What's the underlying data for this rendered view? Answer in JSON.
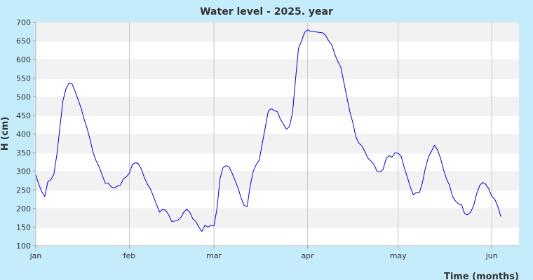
{
  "chart_data": {
    "type": "line",
    "title": "Water level - 2025. year",
    "xlabel": "Time (months)",
    "ylabel": "H (cm)",
    "ylim": [
      100,
      700
    ],
    "yticks": [
      "100",
      "150",
      "200",
      "250",
      "300",
      "350",
      "400",
      "450",
      "500",
      "550",
      "600",
      "650",
      "700"
    ],
    "xticks": [
      {
        "label": "jan",
        "day": 0
      },
      {
        "label": "feb",
        "day": 31
      },
      {
        "label": "mar",
        "day": 59
      },
      {
        "label": "apr",
        "day": 90
      },
      {
        "label": "may",
        "day": 120
      },
      {
        "label": "jun",
        "day": 151
      }
    ],
    "x_range_days": [
      0,
      160
    ],
    "grid": true,
    "line_color": "#0000cc",
    "series": [
      {
        "name": "",
        "points": [
          [
            0,
            290
          ],
          [
            1,
            265
          ],
          [
            2,
            245
          ],
          [
            3,
            232
          ],
          [
            4,
            272
          ],
          [
            5,
            277
          ],
          [
            6,
            292
          ],
          [
            7,
            345
          ],
          [
            8,
            420
          ],
          [
            9,
            490
          ],
          [
            10,
            522
          ],
          [
            11,
            537
          ],
          [
            12,
            535
          ],
          [
            13,
            515
          ],
          [
            14,
            493
          ],
          [
            15,
            470
          ],
          [
            16,
            440
          ],
          [
            17,
            415
          ],
          [
            18,
            385
          ],
          [
            19,
            350
          ],
          [
            20,
            328
          ],
          [
            21,
            312
          ],
          [
            22,
            290
          ],
          [
            23,
            268
          ],
          [
            24,
            268
          ],
          [
            25,
            258
          ],
          [
            26,
            255
          ],
          [
            27,
            260
          ],
          [
            28,
            262
          ],
          [
            29,
            280
          ],
          [
            30,
            285
          ],
          [
            31,
            295
          ],
          [
            32,
            318
          ],
          [
            33,
            323
          ],
          [
            34,
            320
          ],
          [
            35,
            305
          ],
          [
            36,
            282
          ],
          [
            37,
            265
          ],
          [
            38,
            252
          ],
          [
            39,
            232
          ],
          [
            40,
            210
          ],
          [
            41,
            190
          ],
          [
            42,
            198
          ],
          [
            43,
            195
          ],
          [
            44,
            183
          ],
          [
            45,
            165
          ],
          [
            46,
            166
          ],
          [
            47,
            168
          ],
          [
            48,
            175
          ],
          [
            49,
            190
          ],
          [
            50,
            198
          ],
          [
            51,
            190
          ],
          [
            52,
            172
          ],
          [
            53,
            165
          ],
          [
            54,
            150
          ],
          [
            55,
            138
          ],
          [
            56,
            155
          ],
          [
            57,
            150
          ],
          [
            58,
            155
          ],
          [
            59,
            153
          ],
          [
            60,
            200
          ],
          [
            61,
            280
          ],
          [
            62,
            310
          ],
          [
            63,
            315
          ],
          [
            64,
            312
          ],
          [
            65,
            295
          ],
          [
            66,
            275
          ],
          [
            67,
            255
          ],
          [
            68,
            228
          ],
          [
            69,
            208
          ],
          [
            70,
            205
          ],
          [
            71,
            260
          ],
          [
            72,
            300
          ],
          [
            73,
            318
          ],
          [
            74,
            330
          ],
          [
            75,
            375
          ],
          [
            76,
            418
          ],
          [
            77,
            462
          ],
          [
            78,
            468
          ],
          [
            79,
            463
          ],
          [
            80,
            460
          ],
          [
            81,
            440
          ],
          [
            82,
            427
          ],
          [
            83,
            413
          ],
          [
            84,
            420
          ],
          [
            85,
            455
          ],
          [
            86,
            545
          ],
          [
            87,
            630
          ],
          [
            88,
            650
          ],
          [
            89,
            673
          ],
          [
            90,
            680
          ],
          [
            91,
            676
          ],
          [
            92,
            675
          ],
          [
            93,
            674
          ],
          [
            94,
            673
          ],
          [
            95,
            672
          ],
          [
            96,
            665
          ],
          [
            97,
            650
          ],
          [
            98,
            640
          ],
          [
            99,
            615
          ],
          [
            100,
            595
          ],
          [
            101,
            580
          ],
          [
            102,
            540
          ],
          [
            103,
            500
          ],
          [
            104,
            460
          ],
          [
            105,
            430
          ],
          [
            106,
            392
          ],
          [
            107,
            375
          ],
          [
            108,
            368
          ],
          [
            109,
            352
          ],
          [
            110,
            335
          ],
          [
            111,
            327
          ],
          [
            112,
            318
          ],
          [
            113,
            300
          ],
          [
            114,
            298
          ],
          [
            115,
            305
          ],
          [
            116,
            333
          ],
          [
            117,
            342
          ],
          [
            118,
            338
          ],
          [
            119,
            350
          ],
          [
            120,
            348
          ],
          [
            121,
            340
          ],
          [
            122,
            310
          ],
          [
            123,
            285
          ],
          [
            124,
            258
          ],
          [
            125,
            237
          ],
          [
            126,
            243
          ],
          [
            127,
            242
          ],
          [
            128,
            268
          ],
          [
            129,
            308
          ],
          [
            130,
            338
          ],
          [
            131,
            353
          ],
          [
            132,
            370
          ],
          [
            133,
            358
          ],
          [
            134,
            336
          ],
          [
            135,
            305
          ],
          [
            136,
            280
          ],
          [
            137,
            262
          ],
          [
            138,
            232
          ],
          [
            139,
            220
          ],
          [
            140,
            212
          ],
          [
            141,
            210
          ],
          [
            142,
            186
          ],
          [
            143,
            183
          ],
          [
            144,
            190
          ],
          [
            145,
            208
          ],
          [
            146,
            240
          ],
          [
            147,
            262
          ],
          [
            148,
            270
          ],
          [
            149,
            265
          ],
          [
            150,
            253
          ],
          [
            151,
            233
          ],
          [
            152,
            225
          ],
          [
            153,
            205
          ],
          [
            154,
            178
          ]
        ]
      }
    ]
  }
}
